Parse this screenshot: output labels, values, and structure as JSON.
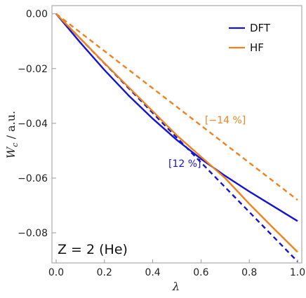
{
  "chart_data": {
    "type": "line",
    "xlabel": "λ",
    "ylabel": "W_c / a.u.",
    "ylabel_main": "W",
    "ylabel_sub": "c",
    "ylabel_rest": " / a.u.",
    "xlim": [
      0,
      1
    ],
    "ylim": [
      -0.091,
      0.003
    ],
    "x_ticks": [
      0.0,
      0.2,
      0.4,
      0.6,
      0.8,
      1.0
    ],
    "x_tick_labels": [
      "0.0",
      "0.2",
      "0.4",
      "0.6",
      "0.8",
      "1.0"
    ],
    "y_ticks": [
      0.0,
      -0.02,
      -0.04,
      -0.06,
      -0.08
    ],
    "y_tick_labels": [
      "0.00",
      "−0.02",
      "−0.04",
      "−0.06",
      "−0.08"
    ],
    "legend_position": "top-right",
    "colors": {
      "DFT": "#1414d6",
      "HF": "#f0821e"
    },
    "series": [
      {
        "name": "DFT",
        "style": "solid",
        "color": "#1414d6",
        "x": [
          0,
          0.1,
          0.2,
          0.3,
          0.4,
          0.5,
          0.6,
          0.7,
          0.8,
          0.9,
          1.0
        ],
        "values": [
          0,
          -0.0105,
          -0.0205,
          -0.0298,
          -0.0383,
          -0.0461,
          -0.053,
          -0.0592,
          -0.0649,
          -0.0703,
          -0.0757
        ]
      },
      {
        "name": "",
        "style": "dashed",
        "color": "#1414d6",
        "x": [
          0,
          1.0
        ],
        "values": [
          0,
          -0.0905
        ]
      },
      {
        "name": "HF",
        "style": "solid",
        "color": "#f0821e",
        "x": [
          0,
          0.1,
          0.2,
          0.3,
          0.4,
          0.5,
          0.6,
          0.7,
          0.8,
          0.9,
          1.0
        ],
        "values": [
          0,
          -0.009,
          -0.018,
          -0.0268,
          -0.0356,
          -0.0444,
          -0.0522,
          -0.06,
          -0.0694,
          -0.0783,
          -0.087
        ]
      },
      {
        "name": "",
        "style": "dashed",
        "color": "#f0821e",
        "x": [
          0,
          1.0
        ],
        "values": [
          0,
          -0.068
        ]
      }
    ],
    "annotations": [
      {
        "text": "[−14 %]",
        "color": "#f0821e"
      },
      {
        "text": "[12 %]",
        "color": "#1414d6"
      },
      {
        "text": "Z = 2 (He)",
        "color": "#111111"
      }
    ]
  }
}
